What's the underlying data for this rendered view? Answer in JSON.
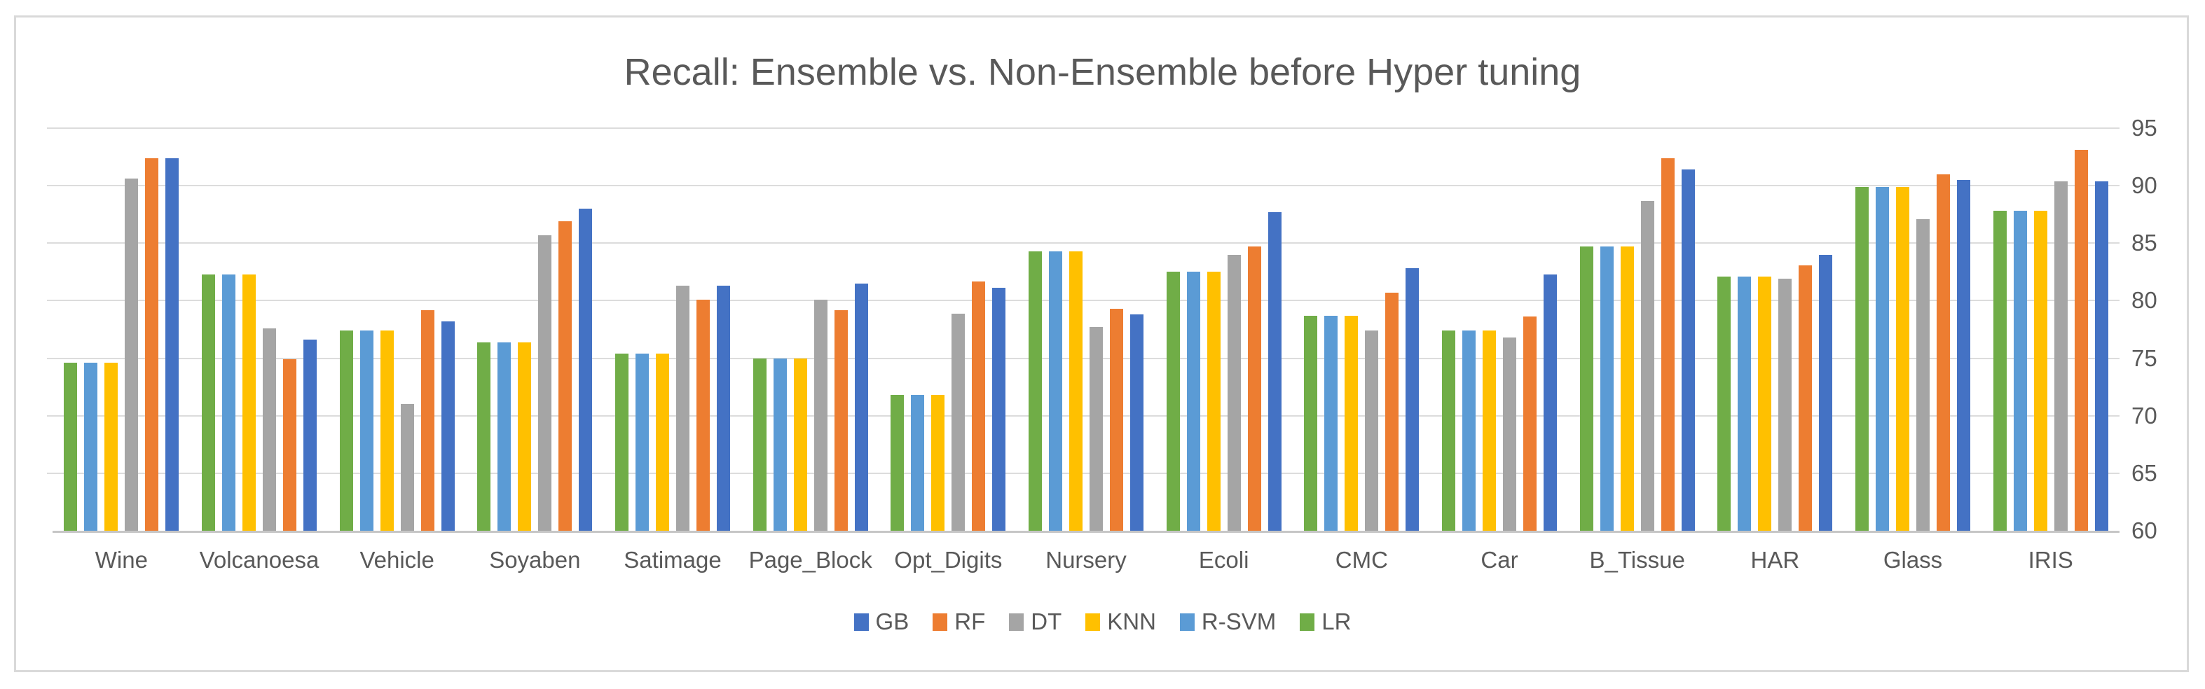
{
  "chart_data": {
    "type": "bar",
    "title": "Recall: Ensemble vs. Non-Ensemble before Hyper tuning",
    "categories": [
      "Wine",
      "Volcanoesa",
      "Vehicle",
      "Soyaben",
      "Satimage",
      "Page_Block",
      "Opt_Digits",
      "Nursery",
      "Ecoli",
      "CMC",
      "Car",
      "B_Tissue",
      "HAR",
      "Glass",
      "IRIS"
    ],
    "series": [
      {
        "name": "GB",
        "color": "#4472C4",
        "values": [
          92.4,
          76.6,
          78.2,
          88.0,
          81.3,
          81.5,
          81.1,
          78.8,
          87.7,
          82.8,
          82.3,
          91.4,
          84.0,
          90.5,
          90.4
        ]
      },
      {
        "name": "RF",
        "color": "#ED7D31",
        "values": [
          92.4,
          74.9,
          79.2,
          86.9,
          80.1,
          79.2,
          81.7,
          79.3,
          84.7,
          80.7,
          78.6,
          92.4,
          83.1,
          91.0,
          93.1
        ]
      },
      {
        "name": "DT",
        "color": "#A5A5A5",
        "values": [
          90.6,
          77.6,
          71.0,
          85.7,
          81.3,
          80.1,
          78.9,
          77.7,
          84.0,
          77.4,
          76.8,
          88.7,
          81.9,
          87.1,
          90.4
        ]
      },
      {
        "name": "KNN",
        "color": "#FFC000",
        "values": [
          74.6,
          82.3,
          77.4,
          76.4,
          75.4,
          75.0,
          71.8,
          84.3,
          82.5,
          78.7,
          77.4,
          84.7,
          82.1,
          89.9,
          87.8
        ]
      },
      {
        "name": "R-SVM",
        "color": "#5B9BD5",
        "values": [
          74.6,
          82.3,
          77.4,
          76.4,
          75.4,
          75.0,
          71.8,
          84.3,
          82.5,
          78.7,
          77.4,
          84.7,
          82.1,
          89.9,
          87.8
        ]
      },
      {
        "name": "LR",
        "color": "#70AD47",
        "values": [
          74.6,
          82.3,
          77.4,
          76.4,
          75.4,
          75.0,
          71.8,
          84.3,
          82.5,
          78.7,
          77.4,
          84.7,
          82.1,
          89.9,
          87.8
        ]
      }
    ],
    "bar_draw_order": [
      "LR",
      "R-SVM",
      "KNN",
      "DT",
      "RF",
      "GB"
    ],
    "legend_order": [
      "GB",
      "RF",
      "DT",
      "KNN",
      "R-SVM",
      "LR"
    ],
    "ylim": [
      60,
      95
    ],
    "ytick_step": 5,
    "yticks": [
      "60",
      "65",
      "70",
      "75",
      "80",
      "85",
      "90",
      "95"
    ],
    "y_axis_side": "right",
    "grid": "horizontal",
    "legend_position": "bottom",
    "text_color": "#595959",
    "gridline_color": "#DCDCDC"
  }
}
